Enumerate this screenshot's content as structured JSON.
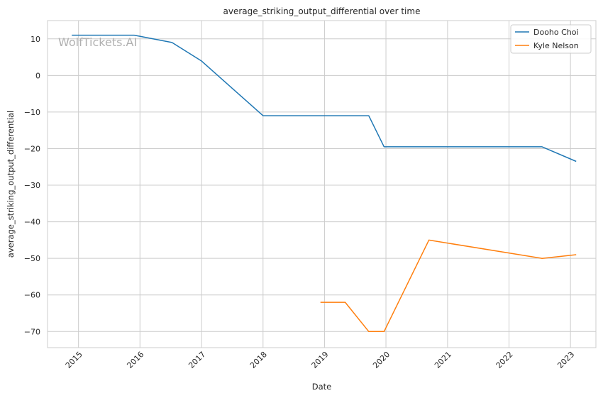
{
  "chart_data": {
    "type": "line",
    "title": "average_striking_output_differential over time",
    "xlabel": "Date",
    "ylabel": "average_striking_output_differential",
    "x_axis_kind": "date",
    "xlim": [
      "2014-07-01",
      "2023-06-01"
    ],
    "ylim": [
      -74.4,
      15
    ],
    "x_ticks": [
      "2015",
      "2016",
      "2017",
      "2018",
      "2019",
      "2020",
      "2021",
      "2022",
      "2023"
    ],
    "y_ticks": [
      10,
      0,
      -10,
      -20,
      -30,
      -40,
      -50,
      -60,
      -70
    ],
    "y_tick_labels": [
      "10",
      "0",
      "−10",
      "−20",
      "−30",
      "−40",
      "−50",
      "−60",
      "−70"
    ],
    "grid": true,
    "legend_position": "top-right",
    "watermark": "WolfTickets.AI",
    "series": [
      {
        "name": "Dooho Choi",
        "color": "#1f77b4",
        "x": [
          "2014-11-22",
          "2015-11-28",
          "2016-07-09",
          "2016-12-30",
          "2018-01-01",
          "2019-09-21",
          "2019-12-21",
          "2022-07-16",
          "2023-02-04"
        ],
        "y": [
          11,
          11,
          9,
          4,
          -11,
          -11,
          -19.5,
          -19.5,
          -23.5
        ]
      },
      {
        "name": "Kyle Nelson",
        "color": "#ff7f0e",
        "x": [
          "2018-12-08",
          "2019-05-04",
          "2019-09-21",
          "2019-12-21",
          "2020-09-12",
          "2022-07-16",
          "2023-02-04"
        ],
        "y": [
          -62,
          -62,
          -70,
          -70,
          -45,
          -50,
          -49
        ]
      }
    ]
  }
}
